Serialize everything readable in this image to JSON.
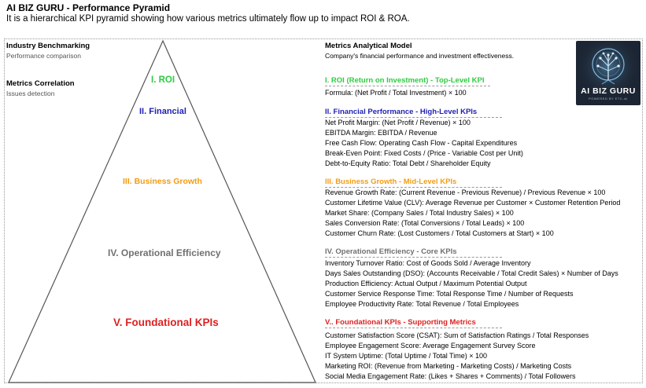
{
  "header": {
    "title": "AI BIZ GURU - Performance Pyramid",
    "subtitle": "It is a hierarchical KPI pyramid showing how various metrics ultimately flow up to impact ROI & ROA."
  },
  "left_panel": {
    "benchmarking_title": "Industry Benchmarking",
    "benchmarking_sub": "Performance comparison",
    "correlation_title": "Metrics Correlation",
    "correlation_sub": "Issues detection"
  },
  "pyramid": {
    "levels": [
      {
        "label": "I. ROI",
        "color": "#2ecc40"
      },
      {
        "label": "II. Financial",
        "color": "#1f1fb4"
      },
      {
        "label": "III. Business Growth",
        "color": "#f39c12"
      },
      {
        "label": "IV. Operational Efficiency",
        "color": "#707070"
      },
      {
        "label": "V. Foundational KPIs",
        "color": "#e02020"
      }
    ]
  },
  "model": {
    "title": "Metrics Analytical Model",
    "description": "Company's financial performance and investment effectiveness.",
    "sections": [
      {
        "heading": "I. ROI (Return on Investment) - Top-Level KPI",
        "formulas": [
          "Formula: (Net Profit / Total Investment) × 100"
        ]
      },
      {
        "heading": "II. Financial Performance - High-Level KPIs",
        "formulas": [
          "Net Profit Margin: (Net Profit / Revenue) × 100",
          "EBITDA Margin: EBITDA / Revenue",
          "Free Cash Flow: Operating Cash Flow - Capital Expenditures",
          "Break-Even Point: Fixed Costs / (Price - Variable Cost per Unit)",
          "Debt-to-Equity Ratio: Total Debt / Shareholder Equity"
        ]
      },
      {
        "heading": "III. Business Growth - Mid-Level KPIs",
        "formulas": [
          "Revenue Growth Rate: (Current Revenue - Previous Revenue) / Previous Revenue × 100",
          "Customer Lifetime Value (CLV): Average Revenue per Customer × Customer Retention Period",
          "Market Share: (Company Sales / Total Industry Sales) × 100",
          "Sales Conversion Rate: (Total Conversions / Total Leads) × 100",
          "Customer Churn Rate: (Lost Customers / Total Customers at Start) × 100"
        ]
      },
      {
        "heading": "IV. Operational Efficiency - Core KPIs",
        "formulas": [
          "Inventory Turnover Ratio: Cost of Goods Sold / Average Inventory",
          "Days Sales Outstanding (DSO): (Accounts Receivable / Total Credit Sales) × Number of Days",
          "Production Efficiency: Actual Output / Maximum Potential Output",
          "Customer Service Response Time: Total Response Time / Number of Requests",
          "Employee Productivity Rate: Total Revenue / Total Employees"
        ]
      },
      {
        "heading": "V.. Foundational KPIs - Supporting Metrics",
        "formulas": [
          "Customer Satisfaction Score (CSAT): Sum of Satisfaction Ratings / Total Responses",
          "Employee Engagement Score: Average Engagement Survey Score",
          "IT System Uptime: (Total Uptime / Total Time) × 100",
          "Marketing ROI: (Revenue from Marketing - Marketing Costs) / Marketing Costs",
          "Social Media Engagement Rate: (Likes + Shares + Comments) / Total Followers"
        ]
      }
    ]
  },
  "logo": {
    "text": "AI BIZ GURU",
    "tagline": "POWERED BY ETC-AI"
  }
}
